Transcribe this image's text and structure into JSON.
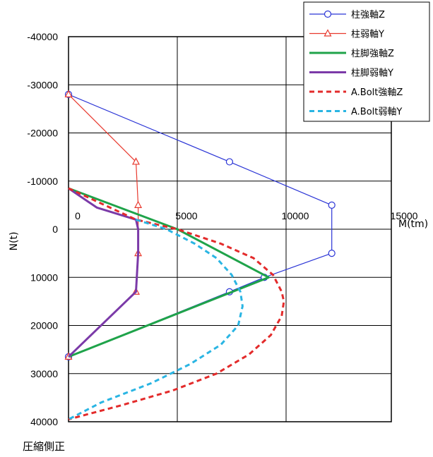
{
  "chart_data": {
    "type": "line",
    "xlabel": "M(tm)",
    "ylabel": "N(t)",
    "footnote": "圧縮側正",
    "xlim": [
      0,
      15000
    ],
    "ylim": [
      -40000,
      40000
    ],
    "y_inverted": true,
    "grid": true,
    "legend_position": "top-right",
    "x_ticks": [
      0,
      5000,
      10000,
      15000
    ],
    "x_tick_labels": [
      "0",
      "5000",
      "10000",
      "15000"
    ],
    "y_ticks": [
      -40000,
      -30000,
      -20000,
      -10000,
      0,
      10000,
      20000,
      30000,
      40000
    ],
    "y_tick_labels": [
      "-40000",
      "-30000",
      "-20000",
      "-10000",
      "0",
      "10000",
      "20000",
      "30000",
      "40000"
    ],
    "series": [
      {
        "name": "柱強軸Z",
        "color": "#2b35d6",
        "style": "solid",
        "width": 1.2,
        "marker": "circle",
        "points": [
          [
            0,
            -28000
          ],
          [
            7400,
            -14000
          ],
          [
            12100,
            -5000
          ],
          [
            12100,
            5000
          ],
          [
            9000,
            10000
          ],
          [
            7400,
            13000
          ],
          [
            0,
            26500
          ]
        ]
      },
      {
        "name": "柱弱軸Y",
        "color": "#e8392e",
        "style": "solid",
        "width": 1.2,
        "marker": "triangle",
        "points": [
          [
            0,
            -28000
          ],
          [
            3100,
            -14000
          ],
          [
            3200,
            -5000
          ],
          [
            3200,
            5000
          ],
          [
            3100,
            13000
          ],
          [
            0,
            26500
          ]
        ]
      },
      {
        "name": "柱脚強軸Z",
        "color": "#1fa34a",
        "style": "solid",
        "width": 3,
        "marker": "none",
        "points": [
          [
            0,
            -8500
          ],
          [
            5000,
            0
          ],
          [
            9200,
            10000
          ],
          [
            0,
            26500
          ]
        ]
      },
      {
        "name": "柱脚弱軸Y",
        "color": "#7b3aa8",
        "style": "solid",
        "width": 3,
        "marker": "none",
        "points": [
          [
            0,
            -8500
          ],
          [
            1300,
            -4500
          ],
          [
            3100,
            -2000
          ],
          [
            3200,
            0
          ],
          [
            3200,
            5000
          ],
          [
            3100,
            13000
          ],
          [
            0,
            26500
          ]
        ]
      },
      {
        "name": "A.Bolt強軸Z",
        "color": "#e32b2b",
        "style": "dashed",
        "width": 3,
        "marker": "none",
        "points": [
          [
            0,
            -8500
          ],
          [
            3100,
            -2000
          ],
          [
            5000,
            0
          ],
          [
            7000,
            3000
          ],
          [
            8500,
            6000
          ],
          [
            9400,
            9500
          ],
          [
            9800,
            13000
          ],
          [
            9900,
            15000
          ],
          [
            9800,
            18000
          ],
          [
            9300,
            22000
          ],
          [
            8300,
            26000
          ],
          [
            6800,
            30000
          ],
          [
            4800,
            33500
          ],
          [
            2500,
            36500
          ],
          [
            0,
            39500
          ]
        ]
      },
      {
        "name": "A.Bolt弱軸Y",
        "color": "#2ab5e3",
        "style": "dashed",
        "width": 3,
        "marker": "none",
        "points": [
          [
            3100,
            -2000
          ],
          [
            4500,
            0
          ],
          [
            5800,
            3000
          ],
          [
            6800,
            6000
          ],
          [
            7500,
            9500
          ],
          [
            7900,
            13000
          ],
          [
            8000,
            16000
          ],
          [
            7800,
            20000
          ],
          [
            7000,
            24000
          ],
          [
            5600,
            28000
          ],
          [
            3800,
            32000
          ],
          [
            1500,
            36000
          ],
          [
            0,
            39500
          ]
        ]
      }
    ]
  }
}
